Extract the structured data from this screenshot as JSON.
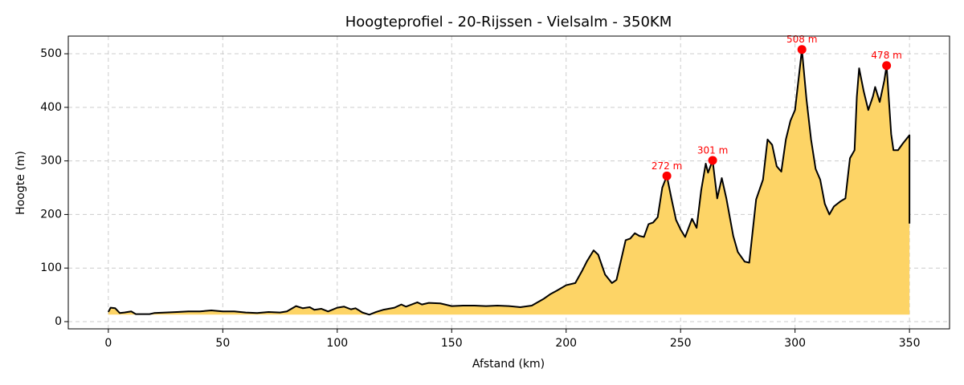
{
  "chart_data": {
    "type": "area",
    "title": "Hoogteprofiel - 20-Rijssen - Vielsalm - 350KM",
    "x_label": "Afstand (km)",
    "y_label": "Hoogte (m)",
    "x": [
      0,
      1,
      3,
      5,
      7,
      10,
      12,
      15,
      18,
      20,
      25,
      30,
      35,
      40,
      45,
      50,
      55,
      60,
      65,
      70,
      75,
      78,
      82,
      85,
      88,
      90,
      93,
      96,
      100,
      103,
      106,
      108,
      111,
      114,
      117,
      120,
      125,
      128,
      130,
      135,
      137,
      140,
      145,
      150,
      155,
      160,
      165,
      170,
      175,
      180,
      185,
      190,
      193,
      196,
      200,
      204,
      207,
      209,
      212,
      214,
      217,
      220,
      222,
      224,
      226,
      228,
      230,
      232,
      234,
      236,
      238,
      240,
      242,
      244,
      246,
      248,
      250,
      252,
      255,
      257,
      259,
      261,
      262,
      264,
      266,
      268,
      270,
      273,
      275,
      278,
      280,
      283,
      286,
      288,
      290,
      292,
      294,
      296,
      298,
      300,
      302,
      303,
      305,
      307,
      309,
      311,
      313,
      315,
      317,
      320,
      322,
      324,
      326,
      327,
      328,
      330,
      332,
      334,
      335,
      337,
      339,
      340,
      342,
      343,
      345,
      347,
      350,
      350
    ],
    "values": [
      18,
      26,
      25,
      16,
      17,
      19,
      14,
      14,
      14,
      16,
      17,
      18,
      19,
      19,
      21,
      19,
      19,
      17,
      16,
      18,
      17,
      19,
      29,
      25,
      27,
      22,
      24,
      19,
      26,
      28,
      23,
      25,
      17,
      13,
      18,
      22,
      26,
      32,
      28,
      36,
      32,
      35,
      34,
      29,
      30,
      30,
      29,
      30,
      29,
      27,
      30,
      42,
      51,
      58,
      68,
      72,
      95,
      112,
      133,
      125,
      88,
      72,
      78,
      115,
      152,
      155,
      165,
      160,
      158,
      182,
      185,
      195,
      250,
      272,
      230,
      190,
      172,
      158,
      192,
      175,
      245,
      295,
      278,
      301,
      230,
      268,
      230,
      160,
      130,
      112,
      110,
      228,
      265,
      340,
      330,
      290,
      280,
      340,
      375,
      395,
      470,
      508,
      415,
      340,
      285,
      265,
      220,
      200,
      215,
      225,
      230,
      305,
      320,
      420,
      473,
      430,
      395,
      420,
      438,
      410,
      450,
      478,
      350,
      320,
      320,
      332,
      348,
      183
    ],
    "line_color": "#000000",
    "fill_color": "#fdd466",
    "marker_color": "#ff0000",
    "annotations": [
      {
        "x": 244,
        "y": 272,
        "label": "272 m"
      },
      {
        "x": 264,
        "y": 301,
        "label": "301 m"
      },
      {
        "x": 303,
        "y": 508,
        "label": "508 m"
      },
      {
        "x": 340,
        "y": 478,
        "label": "478 m"
      }
    ],
    "xlim": [
      -17.5,
      367.5
    ],
    "ylim": [
      -13.5,
      533
    ],
    "xticks": [
      0,
      50,
      100,
      150,
      200,
      250,
      300,
      350
    ],
    "yticks": [
      0,
      100,
      200,
      300,
      400,
      500
    ],
    "grid": true
  }
}
